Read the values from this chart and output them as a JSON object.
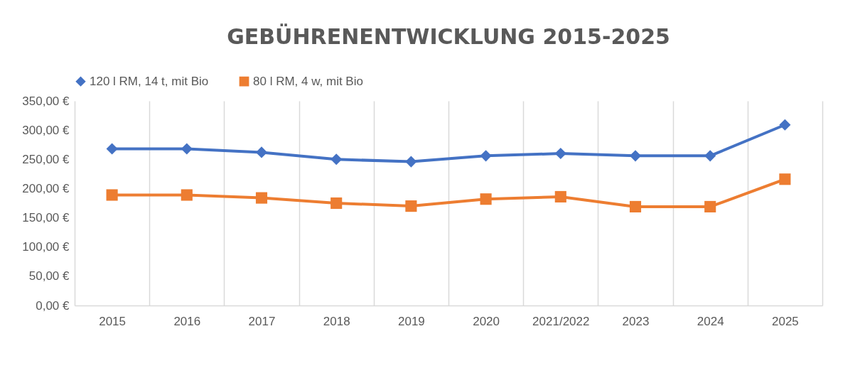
{
  "chart_data": {
    "type": "line",
    "title": "GEBÜHRENENTWICKLUNG  2015-2025",
    "categories": [
      "2015",
      "2016",
      "2017",
      "2018",
      "2019",
      "2020",
      "2021/2022",
      "2023",
      "2024",
      "2025"
    ],
    "series": [
      {
        "name": "120 l RM, 14 t, mit Bio",
        "color": "#4472c4",
        "marker": "diamond",
        "values": [
          268,
          268,
          262,
          250,
          246,
          256,
          260,
          256,
          256,
          309
        ]
      },
      {
        "name": "80 l RM, 4 w, mit Bio",
        "color": "#ed7d31",
        "marker": "square",
        "values": [
          189,
          189,
          184,
          175,
          170,
          182,
          186,
          169,
          169,
          216
        ]
      }
    ],
    "ylim": [
      0,
      350
    ],
    "yticks": [
      {
        "value": 0,
        "label": "0,00 €"
      },
      {
        "value": 50,
        "label": "50,00 €"
      },
      {
        "value": 100,
        "label": "100,00 €"
      },
      {
        "value": 150,
        "label": "150,00 €"
      },
      {
        "value": 200,
        "label": "200,00 €"
      },
      {
        "value": 250,
        "label": "250,00 €"
      },
      {
        "value": 300,
        "label": "300,00 €"
      },
      {
        "value": 350,
        "label": "350,00 €"
      }
    ],
    "grid": "x",
    "legend": "top"
  }
}
